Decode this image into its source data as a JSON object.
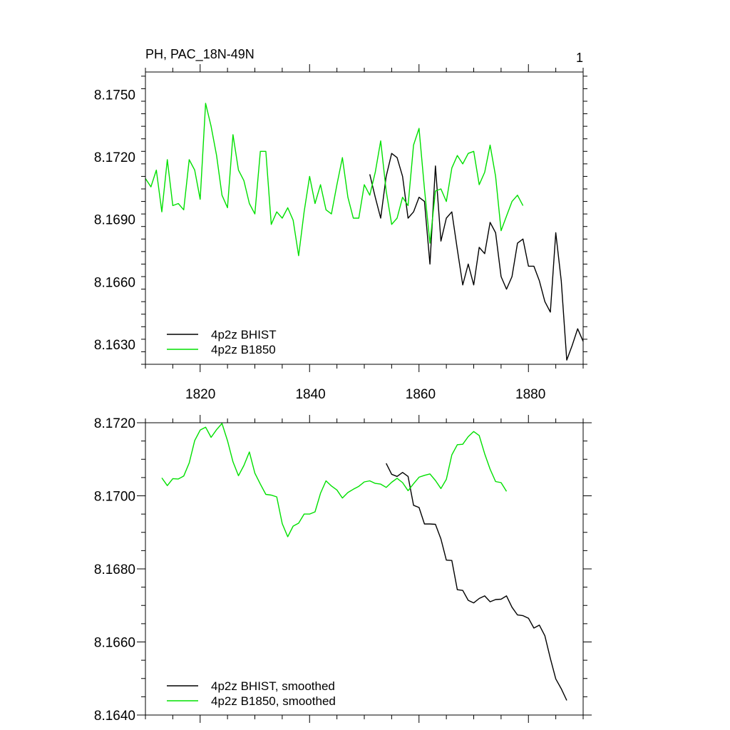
{
  "figure": {
    "title_left": "PH, PAC_18N-49N",
    "title_right": "1"
  },
  "colors": {
    "bhist": "#000000",
    "b1850": "#00e000",
    "axis": "#000000"
  },
  "chart_data": [
    {
      "type": "line",
      "title": "PH, PAC_18N-49N",
      "xlim": [
        1810,
        1890
      ],
      "ylim": [
        8.162,
        8.176
      ],
      "x_ticks": [
        1820,
        1840,
        1860,
        1880
      ],
      "x_tick_labels": [
        "1820",
        "1840",
        "1860",
        "1880"
      ],
      "y_ticks": [
        8.163,
        8.166,
        8.169,
        8.172,
        8.175
      ],
      "y_tick_labels": [
        "8.1630",
        "8.1660",
        "8.1690",
        "8.1720",
        "8.1750"
      ],
      "legend": [
        "4p2z BHIST",
        "4p2z B1850"
      ],
      "legend_position": "bottom-left",
      "series": [
        {
          "name": "4p2z BHIST",
          "color": "#000000",
          "x": [
            1851,
            1852,
            1853,
            1854,
            1855,
            1856,
            1857,
            1858,
            1859,
            1860,
            1861,
            1862,
            1863,
            1864,
            1865,
            1866,
            1867,
            1868,
            1869,
            1870,
            1871,
            1872,
            1873,
            1874,
            1875,
            1876,
            1877,
            1878,
            1879,
            1880,
            1881,
            1882,
            1883,
            1884,
            1885,
            1886,
            1887,
            1888,
            1889,
            1890
          ],
          "values": [
            8.1711,
            8.17,
            8.169,
            8.171,
            8.1721,
            8.1719,
            8.171,
            8.169,
            8.1693,
            8.17,
            8.1698,
            8.1668,
            8.1715,
            8.1679,
            8.169,
            8.1693,
            8.1675,
            8.1658,
            8.1668,
            8.1658,
            8.1676,
            8.1673,
            8.1688,
            8.1683,
            8.1662,
            8.1656,
            8.1662,
            8.1678,
            8.168,
            8.1667,
            8.1667,
            8.166,
            8.165,
            8.1645,
            8.1683,
            8.166,
            8.1622,
            8.1629,
            8.1637,
            8.1631
          ]
        },
        {
          "name": "4p2z B1850",
          "color": "#00e000",
          "x": [
            1810,
            1811,
            1812,
            1813,
            1814,
            1815,
            1816,
            1817,
            1818,
            1819,
            1820,
            1821,
            1822,
            1823,
            1824,
            1825,
            1826,
            1827,
            1828,
            1829,
            1830,
            1831,
            1832,
            1833,
            1834,
            1835,
            1836,
            1837,
            1838,
            1839,
            1840,
            1841,
            1842,
            1843,
            1844,
            1845,
            1846,
            1847,
            1848,
            1849,
            1850,
            1851,
            1852,
            1853,
            1854,
            1855,
            1856,
            1857,
            1858,
            1859,
            1860,
            1861,
            1862,
            1863,
            1864,
            1865,
            1866,
            1867,
            1868,
            1869,
            1870,
            1871,
            1872,
            1873,
            1874,
            1875,
            1876,
            1877,
            1878,
            1879
          ],
          "values": [
            8.1709,
            8.1705,
            8.1713,
            8.1693,
            8.1718,
            8.1696,
            8.1697,
            8.1694,
            8.1718,
            8.1713,
            8.1699,
            8.1745,
            8.1734,
            8.172,
            8.1701,
            8.1695,
            8.173,
            8.1713,
            8.1708,
            8.1697,
            8.1692,
            8.1722,
            8.1722,
            8.1687,
            8.1693,
            8.169,
            8.1695,
            8.1689,
            8.1672,
            8.1693,
            8.171,
            8.1697,
            8.1706,
            8.1694,
            8.1692,
            8.1706,
            8.1719,
            8.17,
            8.169,
            8.169,
            8.1706,
            8.1701,
            8.1712,
            8.1727,
            8.1703,
            8.1687,
            8.169,
            8.17,
            8.1696,
            8.1725,
            8.1733,
            8.1704,
            8.1678,
            8.1703,
            8.1704,
            8.1698,
            8.1714,
            8.172,
            8.1716,
            8.1721,
            8.1722,
            8.1706,
            8.1712,
            8.1725,
            8.171,
            8.1684,
            8.1691,
            8.1698,
            8.1701,
            8.1696
          ]
        }
      ]
    },
    {
      "type": "line",
      "xlim": [
        1810,
        1890
      ],
      "ylim": [
        8.164,
        8.172
      ],
      "x_ticks": [
        1820,
        1840,
        1860,
        1880
      ],
      "y_ticks": [
        8.164,
        8.166,
        8.168,
        8.17,
        8.172
      ],
      "y_tick_labels": [
        "8.1640",
        "8.1660",
        "8.1680",
        "8.1700",
        "8.1720"
      ],
      "legend": [
        "4p2z BHIST, smoothed",
        "4p2z B1850, smoothed"
      ],
      "legend_position": "bottom-left",
      "series": [
        {
          "name": "4p2z BHIST, smoothed",
          "color": "#000000",
          "x": [
            1854,
            1855,
            1856,
            1857,
            1858,
            1859,
            1860,
            1861,
            1862,
            1863,
            1864,
            1865,
            1866,
            1867,
            1868,
            1869,
            1870,
            1871,
            1872,
            1873,
            1874,
            1875,
            1876,
            1877,
            1878,
            1879,
            1880,
            1881,
            1882,
            1883,
            1884,
            1885,
            1886,
            1887
          ],
          "values": [
            8.17089,
            8.17059,
            8.17053,
            8.17064,
            8.17053,
            8.16974,
            8.16968,
            8.16923,
            8.16923,
            8.16922,
            8.16882,
            8.16824,
            8.16823,
            8.16743,
            8.16741,
            8.16714,
            8.16707,
            8.16719,
            8.16726,
            8.1671,
            8.16716,
            8.16717,
            8.16726,
            8.16695,
            8.16674,
            8.16672,
            8.16665,
            8.16638,
            8.16646,
            8.16617,
            8.16555,
            8.16499,
            8.16472,
            8.1644
          ]
        },
        {
          "name": "4p2z B1850, smoothed",
          "color": "#00e000",
          "x": [
            1813,
            1814,
            1815,
            1816,
            1817,
            1818,
            1819,
            1820,
            1821,
            1822,
            1823,
            1824,
            1825,
            1826,
            1827,
            1828,
            1829,
            1830,
            1831,
            1832,
            1833,
            1834,
            1835,
            1836,
            1837,
            1838,
            1839,
            1840,
            1841,
            1842,
            1843,
            1844,
            1845,
            1846,
            1847,
            1848,
            1849,
            1850,
            1851,
            1852,
            1853,
            1854,
            1855,
            1856,
            1857,
            1858,
            1859,
            1860,
            1861,
            1862,
            1863,
            1864,
            1865,
            1866,
            1867,
            1868,
            1869,
            1870,
            1871,
            1872,
            1873,
            1874,
            1875,
            1876
          ],
          "values": [
            8.17049,
            8.17028,
            8.17047,
            8.17046,
            8.17054,
            8.1709,
            8.17151,
            8.1718,
            8.17188,
            8.1716,
            8.17181,
            8.17198,
            8.17151,
            8.17093,
            8.17055,
            8.17083,
            8.1712,
            8.17062,
            8.17032,
            8.17004,
            8.17002,
            8.16997,
            8.16924,
            8.16888,
            8.16917,
            8.16925,
            8.1695,
            8.1695,
            8.16956,
            8.17007,
            8.17041,
            8.17027,
            8.17016,
            8.16994,
            8.17009,
            8.17018,
            8.17026,
            8.17038,
            8.17041,
            8.17034,
            8.17032,
            8.17023,
            8.17037,
            8.17048,
            8.17036,
            8.17014,
            8.17033,
            8.17051,
            8.17056,
            8.1706,
            8.17042,
            8.1702,
            8.17045,
            8.17112,
            8.1714,
            8.17141,
            8.17162,
            8.17176,
            8.17165,
            8.17115,
            8.17073,
            8.17039,
            8.17036,
            8.17012
          ]
        }
      ]
    }
  ]
}
